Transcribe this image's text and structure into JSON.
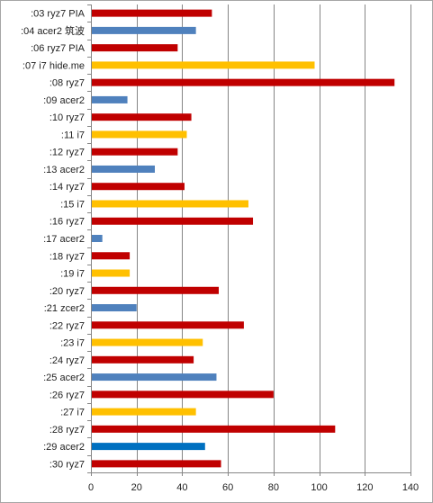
{
  "chart_data": {
    "type": "bar",
    "orientation": "horizontal",
    "title": "",
    "xlabel": "",
    "ylabel": "",
    "xlim": [
      0,
      140
    ],
    "xticks": [
      0,
      20,
      40,
      60,
      80,
      100,
      120,
      140
    ],
    "grid": "vertical",
    "legend": "none",
    "categories": [
      ":03 ryz7 PIA",
      ":04 acer2 筑波",
      ":06 ryz7 PIA",
      ":07 i7 hide.me",
      ":08 ryz7",
      ":09 acer2",
      ":10 ryz7",
      ":11 i7",
      ":12 ryz7",
      ":13 acer2",
      ":14 ryz7",
      ":15 i7",
      ":16 ryz7",
      ":17 acer2",
      ":18 ryz7",
      ":19 i7",
      ":20 ryz7",
      ":21 zcer2",
      ":22 ryz7",
      ":23 i7",
      ":24 ryz7",
      ":25 acer2",
      ":26 ryz7",
      ":27 i7",
      ":28 ryz7",
      ":29 acer2",
      ":30 ryz7"
    ],
    "values": [
      53,
      46,
      38,
      98,
      133,
      16,
      44,
      42,
      38,
      28,
      41,
      69,
      71,
      5,
      17,
      17,
      56,
      20,
      67,
      49,
      45,
      55,
      80,
      46,
      107,
      50,
      57
    ],
    "bar_colors": [
      "#c00000",
      "#4f81bd",
      "#c00000",
      "#ffc000",
      "#c00000",
      "#4f81bd",
      "#c00000",
      "#ffc000",
      "#c00000",
      "#4f81bd",
      "#c00000",
      "#ffc000",
      "#c00000",
      "#4f81bd",
      "#c00000",
      "#ffc000",
      "#c00000",
      "#4f81bd",
      "#c00000",
      "#ffc000",
      "#c00000",
      "#4f81bd",
      "#c00000",
      "#ffc000",
      "#c00000",
      "#0070c0",
      "#c00000"
    ]
  }
}
